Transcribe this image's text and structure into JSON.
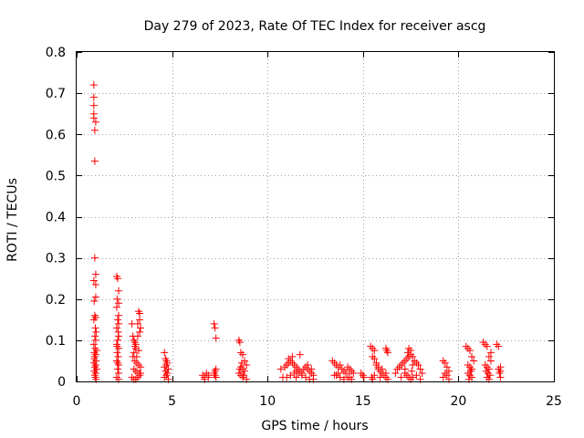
{
  "chart_data": {
    "type": "scatter",
    "title": "Day 279 of 2023, Rate Of TEC Index for receiver ascg",
    "xlabel": "GPS time / hours",
    "ylabel": "ROTI / TECUs",
    "xlim": [
      0,
      25
    ],
    "ylim": [
      0,
      0.8
    ],
    "xticks": [
      0,
      5,
      10,
      15,
      20,
      25
    ],
    "xtick_labels": [
      "0",
      "5",
      "10",
      "15",
      "20",
      "25"
    ],
    "yticks": [
      0,
      0.1,
      0.2,
      0.3,
      0.4,
      0.5,
      0.6,
      0.7,
      0.8
    ],
    "ytick_labels": [
      "0",
      "0.1",
      "0.2",
      "0.3",
      "0.4",
      "0.5",
      "0.6",
      "0.7",
      "0.8"
    ],
    "grid": true,
    "marker": "+",
    "color": "#ff0000",
    "series": [
      {
        "name": "ROTI",
        "x": [
          0.9,
          0.9,
          0.9,
          0.9,
          0.9,
          1.0,
          0.95,
          0.95,
          0.95,
          1.0,
          0.9,
          1.0,
          1.0,
          0.92,
          0.95,
          1.0,
          0.9,
          0.98,
          1.02,
          0.95,
          1.0,
          0.9,
          0.97,
          1.05,
          0.92,
          1.0,
          0.95,
          1.02,
          0.9,
          1.0,
          0.95,
          1.05,
          0.92,
          1.0,
          0.95,
          0.98,
          1.02,
          0.93,
          2.1,
          2.15,
          2.2,
          2.12,
          2.2,
          2.1,
          2.2,
          2.15,
          2.2,
          2.1,
          2.18,
          2.2,
          2.15,
          2.1,
          2.2,
          2.12,
          2.18,
          2.1,
          2.2,
          2.15,
          2.2,
          2.1,
          2.2,
          2.15,
          2.12,
          2.9,
          2.95,
          3.0,
          3.05,
          3.1,
          3.2,
          3.25,
          3.3,
          3.3,
          3.35,
          3.3,
          3.2,
          3.1,
          3.0,
          2.95,
          3.05,
          3.15,
          3.25,
          3.35,
          3.0,
          3.1,
          3.2,
          3.3,
          2.9,
          3.0,
          3.1,
          3.2,
          3.3,
          3.05,
          3.15,
          3.25,
          3.35,
          4.6,
          4.65,
          4.7,
          4.75,
          4.7,
          4.6,
          4.8,
          4.65,
          4.75,
          4.7,
          4.6,
          4.8,
          6.6,
          6.7,
          6.8,
          6.9,
          7.2,
          7.25,
          7.3,
          7.3,
          7.25,
          7.2,
          7.3,
          6.7,
          6.9,
          7.25,
          8.5,
          8.55,
          8.6,
          8.7,
          8.8,
          8.9,
          8.6,
          8.7,
          8.8,
          8.5,
          8.6,
          8.7,
          8.9,
          8.65,
          8.75,
          8.55,
          10.7,
          10.9,
          11.0,
          11.1,
          11.2,
          11.3,
          11.4,
          11.5,
          11.6,
          11.7,
          11.8,
          11.9,
          12.0,
          12.1,
          12.2,
          12.3,
          12.4,
          11.0,
          11.2,
          11.4,
          11.5,
          11.6,
          11.8,
          12.0,
          12.2,
          12.4,
          11.1,
          11.3,
          11.7,
          11.9,
          12.1,
          12.3,
          10.8,
          11.5,
          11.4,
          13.4,
          13.5,
          13.6,
          13.7,
          13.8,
          13.9,
          14.0,
          14.1,
          14.2,
          14.3,
          14.4,
          14.5,
          13.6,
          13.8,
          14.0,
          14.2,
          14.4,
          13.5,
          13.7,
          14.3,
          14.9,
          15.0,
          15.05,
          15.4,
          15.5,
          15.6,
          15.7,
          15.8,
          15.9,
          16.0,
          16.1,
          16.2,
          16.3,
          15.5,
          15.6,
          15.7,
          15.8,
          16.0,
          16.2,
          15.45,
          15.5,
          16.2,
          16.25,
          16.3,
          15.6,
          15.9,
          16.7,
          16.8,
          16.9,
          17.0,
          17.1,
          17.2,
          17.3,
          17.4,
          17.5,
          17.6,
          17.7,
          17.8,
          17.9,
          18.0,
          18.1,
          17.2,
          17.3,
          17.4,
          17.5,
          17.6,
          17.4,
          17.5,
          17.35,
          17.55,
          17.0,
          17.8,
          18.0,
          17.2,
          17.6,
          19.2,
          19.3,
          19.4,
          19.5,
          19.3,
          19.4,
          19.2,
          19.5,
          20.4,
          20.5,
          20.6,
          20.7,
          20.8,
          20.5,
          20.6,
          20.7,
          20.5,
          20.6,
          20.7,
          20.55,
          20.65,
          21.3,
          21.4,
          21.5,
          21.6,
          21.7,
          21.4,
          21.5,
          21.6,
          21.45,
          21.55,
          21.65,
          21.5,
          21.6,
          21.7,
          22.0,
          22.1,
          22.2,
          22.1,
          22.2,
          22.15,
          22.2
        ],
        "y": [
          0.72,
          0.69,
          0.67,
          0.65,
          0.64,
          0.63,
          0.61,
          0.535,
          0.3,
          0.26,
          0.245,
          0.235,
          0.205,
          0.195,
          0.16,
          0.155,
          0.15,
          0.13,
          0.12,
          0.11,
          0.1,
          0.09,
          0.08,
          0.075,
          0.07,
          0.065,
          0.06,
          0.05,
          0.045,
          0.04,
          0.035,
          0.03,
          0.025,
          0.02,
          0.015,
          0.01,
          0.005,
          0.055,
          0.255,
          0.25,
          0.22,
          0.2,
          0.19,
          0.18,
          0.16,
          0.15,
          0.14,
          0.13,
          0.12,
          0.11,
          0.1,
          0.09,
          0.08,
          0.07,
          0.06,
          0.05,
          0.04,
          0.03,
          0.02,
          0.01,
          0.005,
          0.045,
          0.085,
          0.14,
          0.11,
          0.1,
          0.095,
          0.09,
          0.14,
          0.17,
          0.165,
          0.15,
          0.13,
          0.12,
          0.11,
          0.08,
          0.07,
          0.06,
          0.05,
          0.045,
          0.04,
          0.035,
          0.03,
          0.025,
          0.02,
          0.015,
          0.01,
          0.005,
          0.005,
          0.01,
          0.02,
          0.085,
          0.06,
          0.075,
          0.02,
          0.07,
          0.055,
          0.05,
          0.045,
          0.04,
          0.035,
          0.03,
          0.025,
          0.02,
          0.015,
          0.01,
          0.005,
          0.015,
          0.01,
          0.02,
          0.015,
          0.14,
          0.13,
          0.105,
          0.03,
          0.025,
          0.02,
          0.01,
          0.005,
          0.01,
          0.015,
          0.1,
          0.095,
          0.07,
          0.065,
          0.05,
          0.04,
          0.035,
          0.03,
          0.025,
          0.02,
          0.015,
          0.01,
          0.005,
          0.045,
          0.015,
          0.03,
          0.03,
          0.035,
          0.04,
          0.045,
          0.05,
          0.045,
          0.04,
          0.035,
          0.03,
          0.025,
          0.02,
          0.03,
          0.035,
          0.03,
          0.025,
          0.02,
          0.015,
          0.01,
          0.015,
          0.02,
          0.025,
          0.02,
          0.015,
          0.01,
          0.005,
          0.005,
          0.055,
          0.06,
          0.065,
          0.03,
          0.04,
          0.03,
          0.01,
          0.01,
          0.02,
          0.05,
          0.045,
          0.04,
          0.035,
          0.04,
          0.03,
          0.025,
          0.02,
          0.035,
          0.03,
          0.025,
          0.02,
          0.015,
          0.01,
          0.005,
          0.01,
          0.005,
          0.015,
          0.02,
          0.01,
          0.02,
          0.015,
          0.01,
          0.085,
          0.08,
          0.075,
          0.04,
          0.03,
          0.025,
          0.02,
          0.015,
          0.01,
          0.005,
          0.06,
          0.055,
          0.045,
          0.035,
          0.03,
          0.02,
          0.01,
          0.005,
          0.08,
          0.075,
          0.07,
          0.015,
          0.01,
          0.02,
          0.03,
          0.035,
          0.04,
          0.045,
          0.05,
          0.055,
          0.08,
          0.075,
          0.06,
          0.05,
          0.045,
          0.04,
          0.03,
          0.02,
          0.02,
          0.015,
          0.01,
          0.005,
          0.01,
          0.06,
          0.065,
          0.07,
          0.025,
          0.01,
          0.015,
          0.005,
          0.03,
          0.04,
          0.05,
          0.045,
          0.035,
          0.025,
          0.02,
          0.015,
          0.01,
          0.005,
          0.085,
          0.08,
          0.075,
          0.06,
          0.05,
          0.04,
          0.035,
          0.03,
          0.02,
          0.015,
          0.01,
          0.005,
          0.025,
          0.095,
          0.09,
          0.085,
          0.06,
          0.05,
          0.04,
          0.035,
          0.03,
          0.025,
          0.02,
          0.015,
          0.01,
          0.005,
          0.07,
          0.09,
          0.085,
          0.035,
          0.03,
          0.025,
          0.02,
          0.01
        ]
      }
    ]
  }
}
